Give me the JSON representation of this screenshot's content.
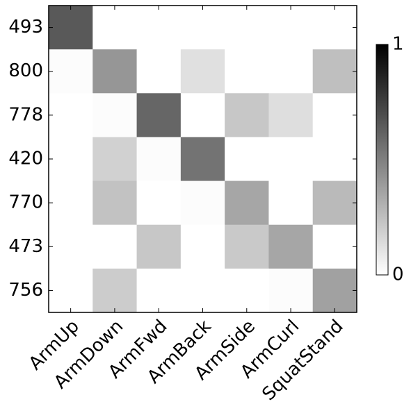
{
  "chart_data": {
    "type": "heatmap",
    "x_categories": [
      "ArmUp",
      "ArmDown",
      "ArmFwd",
      "ArmBack",
      "ArmSide",
      "ArmCurl",
      "SquatStand"
    ],
    "y_categories": [
      "493",
      "800",
      "778",
      "420",
      "770",
      "473",
      "756"
    ],
    "values": [
      [
        0.65,
        0,
        0,
        0,
        0,
        0,
        0
      ],
      [
        0.01,
        0.41,
        0,
        0.12,
        0,
        0,
        0.25
      ],
      [
        0,
        0.01,
        0.6,
        0,
        0.22,
        0.13,
        0
      ],
      [
        0,
        0.18,
        0.01,
        0.55,
        0,
        0,
        0
      ],
      [
        0,
        0.24,
        0,
        0.01,
        0.35,
        0,
        0.27
      ],
      [
        0,
        0,
        0.22,
        0,
        0.21,
        0.35,
        0
      ],
      [
        0,
        0.2,
        0,
        0,
        0,
        0.01,
        0.37
      ]
    ],
    "colormap": "gray_r",
    "clim": [
      0,
      1
    ],
    "colorbar_ticks": [
      0,
      1
    ]
  }
}
